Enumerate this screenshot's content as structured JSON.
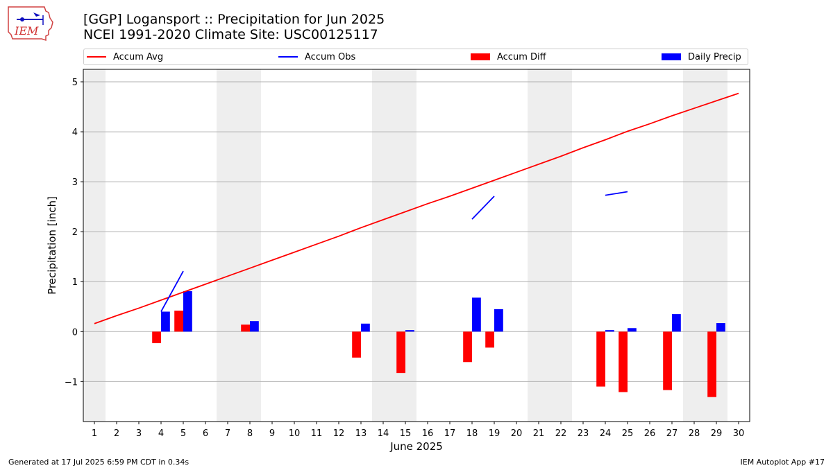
{
  "header": {
    "logo_text": "IEM",
    "title_line1": "[GGP] Logansport :: Precipitation for Jun 2025",
    "title_line2": "NCEI 1991-2020 Climate Site: USC00125117"
  },
  "legend": {
    "items": [
      {
        "label": "Accum Avg",
        "color": "#ff0000",
        "kind": "line"
      },
      {
        "label": "Accum Obs",
        "color": "#0000ff",
        "kind": "line"
      },
      {
        "label": "Accum Diff",
        "color": "#ff0000",
        "kind": "box"
      },
      {
        "label": "Daily Precip",
        "color": "#0000ff",
        "kind": "box"
      }
    ]
  },
  "footer": {
    "generated": "Generated at 17 Jul 2025 6:59 PM CDT in 0.34s",
    "app": "IEM Autoplot App #17"
  },
  "chart_data": {
    "type": "bar",
    "xlabel": "June 2025",
    "ylabel": "Precipitation [inch]",
    "xlim": [
      0.5,
      30.5
    ],
    "ylim": [
      -1.8,
      5.25
    ],
    "yticks": [
      -1,
      0,
      1,
      2,
      3,
      4,
      5
    ],
    "ytick_labels": [
      "−1",
      "0",
      "1",
      "2",
      "3",
      "4",
      "5"
    ],
    "x": [
      1,
      2,
      3,
      4,
      5,
      6,
      7,
      8,
      9,
      10,
      11,
      12,
      13,
      14,
      15,
      16,
      17,
      18,
      19,
      20,
      21,
      22,
      23,
      24,
      25,
      26,
      27,
      28,
      29,
      30
    ],
    "weekend_bands": [
      [
        0.5,
        1.5
      ],
      [
        6.5,
        8.5
      ],
      [
        13.5,
        15.5
      ],
      [
        20.5,
        22.5
      ],
      [
        27.5,
        29.5
      ]
    ],
    "grid": "y",
    "series": [
      {
        "name": "Accum Avg",
        "kind": "line",
        "color": "#ff0000",
        "values": [
          0.16,
          0.32,
          0.47,
          0.63,
          0.79,
          0.95,
          1.11,
          1.27,
          1.43,
          1.59,
          1.75,
          1.91,
          2.08,
          2.24,
          2.4,
          2.56,
          2.71,
          2.87,
          3.03,
          3.19,
          3.35,
          3.51,
          3.68,
          3.84,
          4.01,
          4.16,
          4.32,
          4.47,
          4.62,
          4.77
        ]
      },
      {
        "name": "Accum Obs",
        "kind": "line",
        "color": "#0000ff",
        "segments": [
          [
            [
              4,
              0.4
            ],
            [
              5,
              1.21
            ]
          ],
          [
            [
              18,
              2.25
            ],
            [
              19,
              2.71
            ]
          ],
          [
            [
              24,
              2.73
            ],
            [
              25,
              2.8
            ]
          ]
        ]
      },
      {
        "name": "Accum Diff",
        "kind": "bar",
        "color": "#ff0000",
        "points": [
          [
            4,
            -0.23
          ],
          [
            5,
            0.42
          ],
          [
            8,
            0.14
          ],
          [
            13,
            -0.52
          ],
          [
            15,
            -0.83
          ],
          [
            18,
            -0.61
          ],
          [
            19,
            -0.32
          ],
          [
            24,
            -1.1
          ],
          [
            25,
            -1.21
          ],
          [
            27,
            -1.17
          ],
          [
            29,
            -1.31
          ]
        ]
      },
      {
        "name": "Daily Precip",
        "kind": "bar",
        "color": "#0000ff",
        "points": [
          [
            4,
            0.4
          ],
          [
            5,
            0.81
          ],
          [
            8,
            0.21
          ],
          [
            13,
            0.16
          ],
          [
            15,
            0.03
          ],
          [
            18,
            0.68
          ],
          [
            19,
            0.45
          ],
          [
            24,
            0.03
          ],
          [
            25,
            0.07
          ],
          [
            27,
            0.35
          ],
          [
            29,
            0.17
          ]
        ]
      }
    ]
  }
}
